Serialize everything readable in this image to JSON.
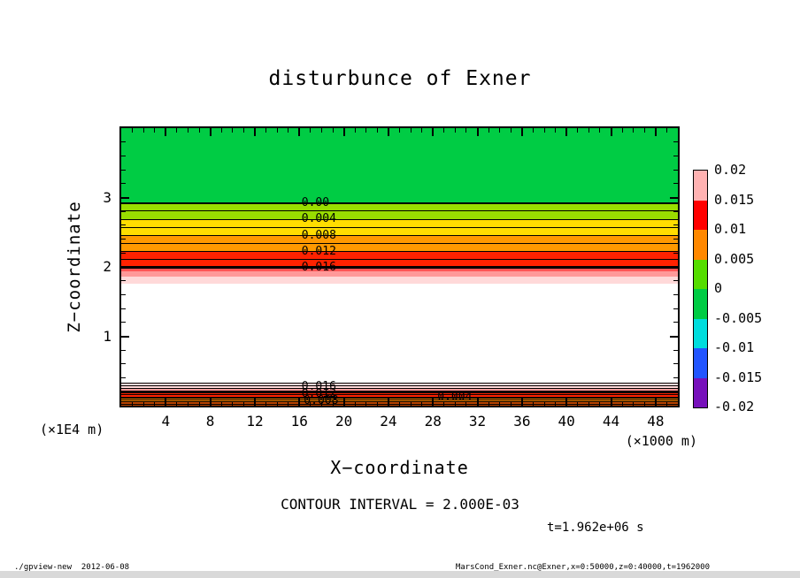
{
  "chart_data": {
    "type": "heatmap",
    "title": "disturbunce of Exner",
    "xlabel": "X−coordinate",
    "ylabel": "Z−coordinate",
    "x_unit": "(×1000 m)",
    "z_unit": "(×1E4 m)",
    "x_range": [
      0,
      50
    ],
    "z_range": [
      0,
      4
    ],
    "x_major_ticks": [
      4,
      8,
      12,
      16,
      20,
      24,
      28,
      32,
      36,
      40,
      44,
      48
    ],
    "x_minor_step": 1,
    "z_major_ticks": [
      1,
      2,
      3
    ],
    "z_minor_step": 0.2,
    "contour_interval_note": "CONTOUR INTERVAL = 2.000E-03",
    "time_annotation": "t=1.962e+06 s",
    "colorbar": {
      "tick_labels": [
        "0.02",
        "0.015",
        "0.01",
        "0.005",
        "0",
        "-0.005",
        "-0.01",
        "-0.015",
        "-0.02"
      ],
      "segment_colors_top_to_bottom": [
        "#ffb2b2",
        "#ff0000",
        "#ff8800",
        "#55dd00",
        "#00cc44",
        "#00dddd",
        "#2255ff",
        "#7711bb"
      ]
    },
    "bands": [
      {
        "z_top": 4.0,
        "z_bottom": 2.92,
        "color": "#00cc44"
      },
      {
        "z_top": 2.92,
        "z_bottom": 2.685,
        "color": "#99dd00"
      },
      {
        "z_top": 2.685,
        "z_bottom": 2.45,
        "color": "#ffdd00"
      },
      {
        "z_top": 2.45,
        "z_bottom": 2.22,
        "color": "#ff9900"
      },
      {
        "z_top": 2.22,
        "z_bottom": 1.99,
        "color": "#ff2200"
      },
      {
        "z_top": 1.99,
        "z_bottom": 1.93,
        "color": "#ff5555"
      },
      {
        "z_top": 1.93,
        "z_bottom": 1.86,
        "color": "#ff9999"
      },
      {
        "z_top": 1.86,
        "z_bottom": 1.76,
        "color": "#ffd9d9"
      },
      {
        "z_top": 1.76,
        "z_bottom": 0.33,
        "color": "#ffffff"
      },
      {
        "z_top": 0.33,
        "z_bottom": 0.25,
        "color": "#ffd9d9"
      },
      {
        "z_top": 0.25,
        "z_bottom": 0.19,
        "color": "#ff9999"
      },
      {
        "z_top": 0.19,
        "z_bottom": 0.11,
        "color": "#ff2200"
      },
      {
        "z_top": 0.11,
        "z_bottom": 0.06,
        "color": "#ff8800"
      },
      {
        "z_top": 0.06,
        "z_bottom": 0.0,
        "color": "#bb4400",
        "stripes": true
      }
    ],
    "contour_lines": [
      {
        "z": 2.92,
        "w": 2
      },
      {
        "z": 2.805,
        "w": 1
      },
      {
        "z": 2.685,
        "w": 1
      },
      {
        "z": 2.565,
        "w": 1
      },
      {
        "z": 2.45,
        "w": 1
      },
      {
        "z": 2.335,
        "w": 1
      },
      {
        "z": 2.22,
        "w": 1
      },
      {
        "z": 2.105,
        "w": 1
      },
      {
        "z": 1.99,
        "w": 3
      },
      {
        "z": 0.33,
        "w": 1
      },
      {
        "z": 0.29,
        "w": 1
      },
      {
        "z": 0.25,
        "w": 1
      },
      {
        "z": 0.215,
        "w": 1
      },
      {
        "z": 0.19,
        "w": 2
      },
      {
        "z": 0.155,
        "w": 1
      },
      {
        "z": 0.11,
        "w": 2
      },
      {
        "z": 0.085,
        "w": 1
      }
    ],
    "contour_labels": [
      {
        "text": "0.00",
        "x": 16.2,
        "z": 2.92
      },
      {
        "text": "0.004",
        "x": 16.2,
        "z": 2.685
      },
      {
        "text": "0.008",
        "x": 16.2,
        "z": 2.45
      },
      {
        "text": "0.012",
        "x": 16.2,
        "z": 2.22
      },
      {
        "text": "0.016",
        "x": 16.2,
        "z": 1.99
      },
      {
        "text": "0.016",
        "x": 16.2,
        "z": 0.27
      },
      {
        "text": "0.012",
        "x": 16.2,
        "z": 0.16
      },
      {
        "text": "0.008",
        "x": 16.4,
        "z": 0.07
      },
      {
        "text": "0.004",
        "x": 28.4,
        "z": 0.12
      }
    ]
  },
  "footer": {
    "left": "./gpview-new  2012-06-08",
    "right": "MarsCond_Exner.nc@Exner,x=0:50000,z=0:40000,t=1962000"
  }
}
